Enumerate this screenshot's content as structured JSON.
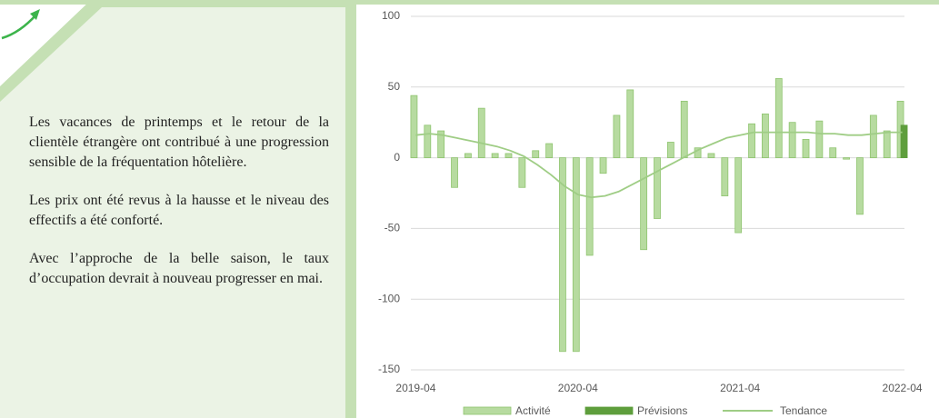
{
  "text": {
    "paragraphs": [
      "Les vacances de printemps et le retour de la clientèle étrangère ont contribué à une progression sensible de la fréquentation hôtelière.",
      "Les prix ont été revus à la hausse et le niveau des effectifs a été conforté.",
      "Avec l’approche de la belle saison, le taux d’occupation devrait à nouveau progresser en mai."
    ]
  },
  "chart_data": {
    "type": "bar",
    "categories": [
      "2019-04",
      null,
      null,
      null,
      null,
      null,
      null,
      null,
      null,
      null,
      null,
      null,
      "2020-04",
      null,
      null,
      null,
      null,
      null,
      null,
      null,
      null,
      null,
      null,
      null,
      "2021-04",
      null,
      null,
      null,
      null,
      null,
      null,
      null,
      null,
      null,
      null,
      null,
      "2022-04"
    ],
    "series": [
      {
        "name": "Activité",
        "type": "bar",
        "color": "#b7dba0",
        "values": [
          44,
          23,
          19,
          -21,
          3,
          35,
          3,
          3,
          -21,
          5,
          10,
          -137,
          -137,
          -69,
          -11,
          30,
          48,
          -65,
          -43,
          11,
          40,
          7,
          3,
          -27,
          -53,
          24,
          31,
          56,
          25,
          13,
          26,
          7,
          -1,
          -40,
          30,
          19,
          40
        ]
      },
      {
        "name": "Prévisions",
        "type": "bar",
        "color": "#5e9e3c",
        "values": [
          null,
          null,
          null,
          null,
          null,
          null,
          null,
          null,
          null,
          null,
          null,
          null,
          null,
          null,
          null,
          null,
          null,
          null,
          null,
          null,
          null,
          null,
          null,
          null,
          null,
          null,
          null,
          null,
          null,
          null,
          null,
          null,
          null,
          null,
          null,
          null,
          23
        ]
      },
      {
        "name": "Tendance",
        "type": "line",
        "color": "#9fcd85",
        "values": [
          16,
          17,
          16,
          14,
          12,
          10,
          8,
          5,
          1,
          -5,
          -12,
          -20,
          -26,
          -28,
          -27,
          -24,
          -19,
          -14,
          -9,
          -4,
          1,
          6,
          10,
          14,
          16,
          18,
          18,
          18,
          18,
          18,
          17,
          17,
          16,
          16,
          17,
          18,
          18
        ]
      }
    ],
    "ylim": [
      -150,
      100
    ],
    "yticks": [
      -150,
      -100,
      -50,
      0,
      50,
      100
    ],
    "grid": true,
    "legend": "bottom"
  }
}
